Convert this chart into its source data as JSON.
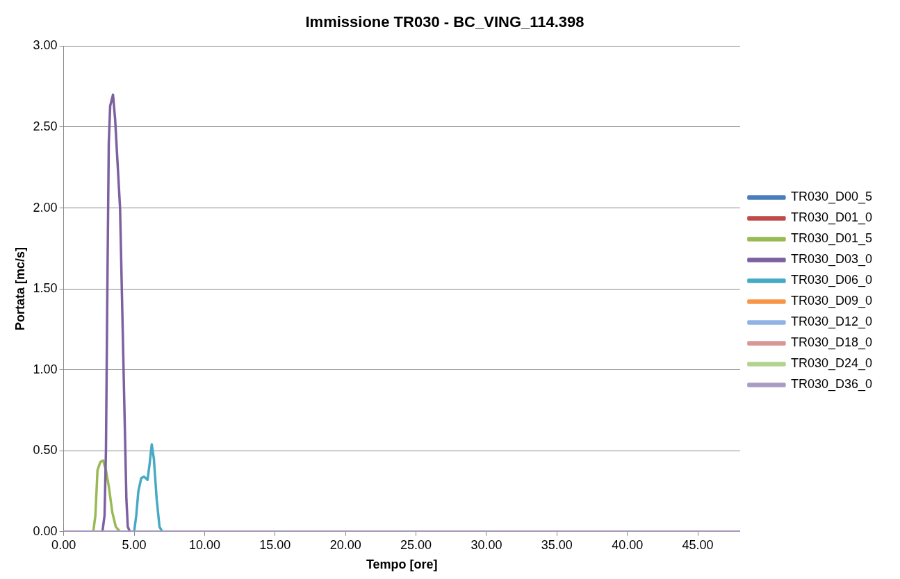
{
  "chart_data": {
    "type": "line",
    "title": "Immissione TR030 - BC_VING_114.398",
    "xlabel": "Tempo [ore]",
    "ylabel": "Portata [mc/s]",
    "xlim": [
      0,
      48
    ],
    "xticks": [
      {
        "value": 0,
        "label": "0.00"
      },
      {
        "value": 5,
        "label": "5.00"
      },
      {
        "value": 10,
        "label": "10.00"
      },
      {
        "value": 15,
        "label": "15.00"
      },
      {
        "value": 20,
        "label": "20.00"
      },
      {
        "value": 25,
        "label": "25.00"
      },
      {
        "value": 30,
        "label": "30.00"
      },
      {
        "value": 35,
        "label": "35.00"
      },
      {
        "value": 40,
        "label": "40.00"
      },
      {
        "value": 45,
        "label": "45.00"
      }
    ],
    "ylim": [
      0,
      3
    ],
    "yticks": [
      {
        "value": 0,
        "label": "0.00"
      },
      {
        "value": 0.5,
        "label": "0.50"
      },
      {
        "value": 1,
        "label": "1.00"
      },
      {
        "value": 1.5,
        "label": "1.50"
      },
      {
        "value": 2,
        "label": "2.00"
      },
      {
        "value": 2.5,
        "label": "2.50"
      },
      {
        "value": 3,
        "label": "3.00"
      }
    ],
    "grid": "y",
    "legend": "right",
    "marker": "none",
    "line_style": "solid",
    "series": [
      {
        "name": "TR030_D00_5",
        "color": "#4a7ebb",
        "values": [
          null
        ]
      },
      {
        "name": "TR030_D01_0",
        "color": "#be4b48",
        "values": [
          null
        ]
      },
      {
        "name": "TR030_D01_5",
        "color": "#98b954",
        "x": [
          2.1,
          2.25,
          2.4,
          2.6,
          2.8,
          3.0,
          3.2,
          3.45,
          3.7,
          4.0
        ],
        "values": [
          0,
          0.1,
          0.38,
          0.43,
          0.44,
          0.38,
          0.28,
          0.12,
          0.03,
          0
        ]
      },
      {
        "name": "TR030_D03_0",
        "color": "#7d60a0",
        "x": [
          2.75,
          2.9,
          3.0,
          3.1,
          3.2,
          3.3,
          3.5,
          3.65,
          4.0,
          4.25,
          4.45,
          4.55,
          4.7
        ],
        "values": [
          0,
          0.1,
          0.5,
          1.5,
          2.4,
          2.63,
          2.7,
          2.55,
          2.0,
          1.0,
          0.2,
          0.03,
          0
        ]
      },
      {
        "name": "TR030_D06_0",
        "color": "#46aac5",
        "x": [
          5.0,
          5.15,
          5.3,
          5.5,
          5.7,
          5.95,
          6.1,
          6.25,
          6.4,
          6.6,
          6.8,
          7.0
        ],
        "values": [
          0,
          0.1,
          0.25,
          0.33,
          0.34,
          0.32,
          0.42,
          0.54,
          0.45,
          0.2,
          0.03,
          0
        ]
      },
      {
        "name": "TR030_D09_0",
        "color": "#f79646",
        "values": [
          null
        ]
      },
      {
        "name": "TR030_D12_0",
        "color": "#8eb4e3",
        "values": [
          null
        ]
      },
      {
        "name": "TR030_D18_0",
        "color": "#d99694",
        "values": [
          null
        ]
      },
      {
        "name": "TR030_D24_0",
        "color": "#b3d38f",
        "values": [
          null
        ]
      },
      {
        "name": "TR030_D36_0",
        "color": "#a99bc4",
        "x": [
          0,
          48
        ],
        "values": [
          0,
          0
        ]
      }
    ]
  }
}
